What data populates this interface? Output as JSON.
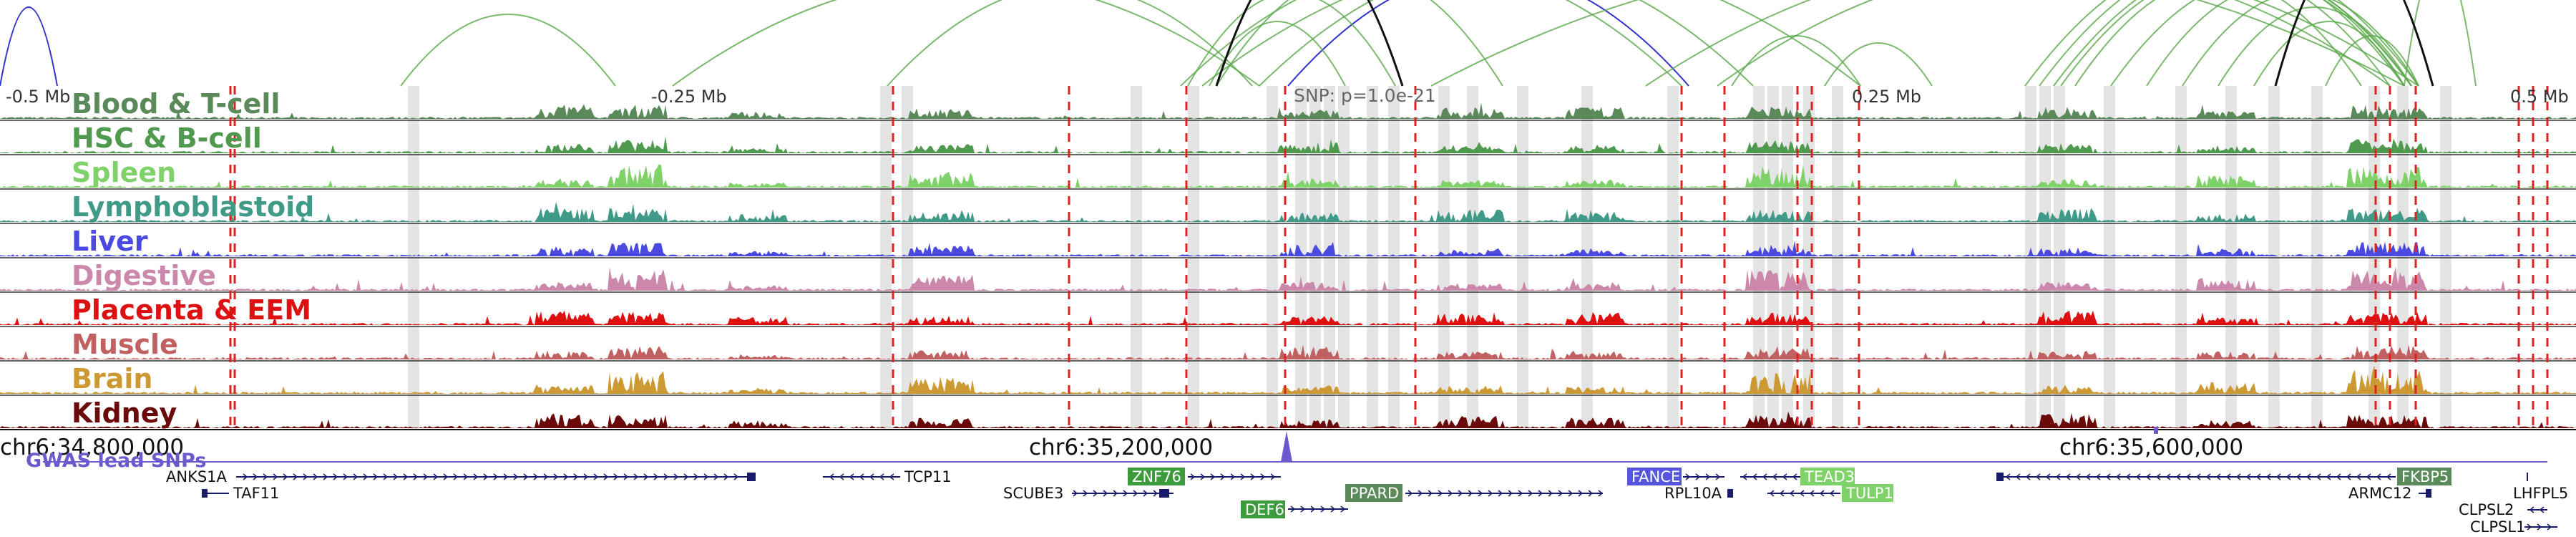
{
  "region_ticks": [
    "-0.5 Mb",
    "-0.25 Mb",
    "0.25 Mb",
    "0.5 Mb"
  ],
  "snp_label": "SNP: p=1.0e-21",
  "tracks": [
    {
      "label": "Blood & T-cell",
      "color": "#5a8a5a"
    },
    {
      "label": "HSC & B-cell",
      "color": "#4f9a4f"
    },
    {
      "label": "Spleen",
      "color": "#7fd16a"
    },
    {
      "label": "Lymphoblastoid",
      "color": "#3f9a88"
    },
    {
      "label": "Liver",
      "color": "#4a4ae0"
    },
    {
      "label": "Digestive",
      "color": "#cc88aa"
    },
    {
      "label": "Placenta & EEM",
      "color": "#dd1111"
    },
    {
      "label": "Muscle",
      "color": "#c06060"
    },
    {
      "label": "Brain",
      "color": "#cc9933"
    },
    {
      "label": "Kidney",
      "color": "#6b0a0a"
    }
  ],
  "coordinates": [
    "chr6:34,800,000",
    "chr6:35,200,000",
    "chr6:35,600,000"
  ],
  "gwas_label": "GWAS lead SNPs",
  "genes": [
    {
      "name": "ANKS1A",
      "boxed": false
    },
    {
      "name": "TAF11",
      "boxed": false
    },
    {
      "name": "TCP11",
      "boxed": false
    },
    {
      "name": "SCUBE3",
      "boxed": false
    },
    {
      "name": "ZNF76",
      "boxed": true,
      "color": "#3d9b3d"
    },
    {
      "name": "DEF6",
      "boxed": true,
      "color": "#3d9b3d"
    },
    {
      "name": "PPARD",
      "boxed": true,
      "color": "#5a8a5a"
    },
    {
      "name": "FANCE",
      "boxed": true,
      "color": "#5555dd"
    },
    {
      "name": "RPL10A",
      "boxed": false
    },
    {
      "name": "TEAD3",
      "boxed": true,
      "color": "#7fd16a"
    },
    {
      "name": "TULP1",
      "boxed": true,
      "color": "#7fd16a"
    },
    {
      "name": "FKBP5",
      "boxed": true,
      "color": "#5a8a5a"
    },
    {
      "name": "ARMC12",
      "boxed": false
    },
    {
      "name": "LHFPL5",
      "boxed": false
    },
    {
      "name": "CLPSL2",
      "boxed": false
    },
    {
      "name": "CLPSL1",
      "boxed": false
    }
  ],
  "colors": {
    "snp_line": "#dd2222",
    "highlight": "#dddddd",
    "gene_line": "#1a1a6a",
    "arc_green": "#5aa84a",
    "arc_blue": "#3333cc",
    "arc_black": "#111111"
  }
}
